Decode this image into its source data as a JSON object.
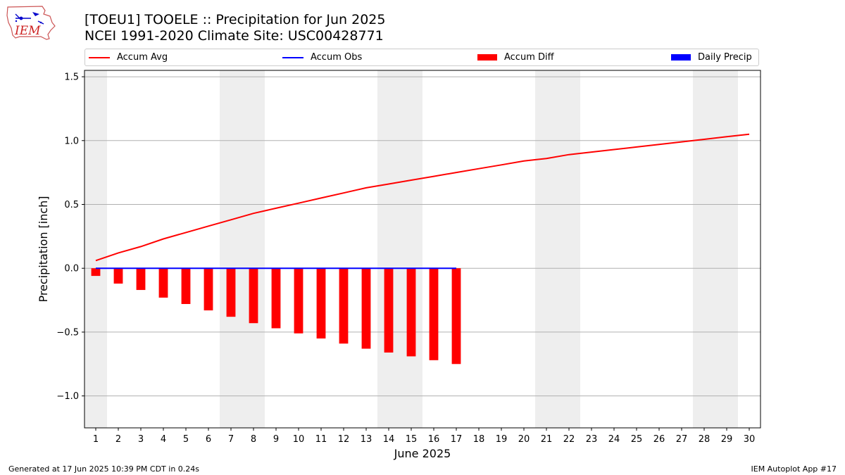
{
  "title_line1": "[TOEU1] TOOELE :: Precipitation for Jun 2025",
  "title_line2": "NCEI 1991-2020 Climate Site: USC00428771",
  "logo_text": "IEM",
  "legend": {
    "accum_avg": "Accum Avg",
    "accum_obs": "Accum Obs",
    "accum_diff": "Accum Diff",
    "daily_precip": "Daily Precip"
  },
  "colors": {
    "accum_avg": "#ff0000",
    "accum_obs": "#0000ff",
    "accum_diff": "#ff0000",
    "daily_precip": "#0000ff",
    "weekend_shade": "#eeeeee",
    "grid": "#b0b0b0"
  },
  "footer_left": "Generated at 17 Jun 2025 10:39 PM CDT in 0.24s",
  "footer_right": "IEM Autoplot App #17",
  "chart_data": {
    "type": "bar",
    "xlabel": "June 2025",
    "ylabel": "Precipitation [inch]",
    "xlim": [
      0.5,
      30.5
    ],
    "ylim": [
      -1.25,
      1.55
    ],
    "yticks": [
      -1.0,
      -0.5,
      0.0,
      0.5,
      1.0,
      1.5
    ],
    "ytick_labels": [
      "−1.0",
      "−0.5",
      "0.0",
      "0.5",
      "1.0",
      "1.5"
    ],
    "x": [
      1,
      2,
      3,
      4,
      5,
      6,
      7,
      8,
      9,
      10,
      11,
      12,
      13,
      14,
      15,
      16,
      17,
      18,
      19,
      20,
      21,
      22,
      23,
      24,
      25,
      26,
      27,
      28,
      29,
      30
    ],
    "grid": "horizontal",
    "legend_position": "top",
    "shaded_days": [
      1,
      7,
      8,
      14,
      15,
      21,
      22,
      28,
      29
    ],
    "series": [
      {
        "name": "Accum Avg",
        "type": "line",
        "x": [
          1,
          2,
          3,
          4,
          5,
          6,
          7,
          8,
          9,
          10,
          11,
          12,
          13,
          14,
          15,
          16,
          17,
          18,
          19,
          20,
          21,
          22,
          23,
          24,
          25,
          26,
          27,
          28,
          29,
          30
        ],
        "values": [
          0.06,
          0.12,
          0.17,
          0.23,
          0.28,
          0.33,
          0.38,
          0.43,
          0.47,
          0.51,
          0.55,
          0.59,
          0.63,
          0.66,
          0.69,
          0.72,
          0.75,
          0.78,
          0.81,
          0.84,
          0.86,
          0.89,
          0.91,
          0.93,
          0.95,
          0.97,
          0.99,
          1.01,
          1.03,
          1.05
        ]
      },
      {
        "name": "Accum Obs",
        "type": "line",
        "x": [
          1,
          2,
          3,
          4,
          5,
          6,
          7,
          8,
          9,
          10,
          11,
          12,
          13,
          14,
          15,
          16,
          17
        ],
        "values": [
          0,
          0,
          0,
          0,
          0,
          0,
          0,
          0,
          0,
          0,
          0,
          0,
          0,
          0,
          0,
          0,
          0
        ]
      },
      {
        "name": "Accum Diff",
        "type": "bar",
        "x": [
          1,
          2,
          3,
          4,
          5,
          6,
          7,
          8,
          9,
          10,
          11,
          12,
          13,
          14,
          15,
          16,
          17
        ],
        "values": [
          -0.06,
          -0.12,
          -0.17,
          -0.23,
          -0.28,
          -0.33,
          -0.38,
          -0.43,
          -0.47,
          -0.51,
          -0.55,
          -0.59,
          -0.63,
          -0.66,
          -0.69,
          -0.72,
          -0.75
        ]
      },
      {
        "name": "Daily Precip",
        "type": "bar",
        "x": [
          1,
          2,
          3,
          4,
          5,
          6,
          7,
          8,
          9,
          10,
          11,
          12,
          13,
          14,
          15,
          16,
          17
        ],
        "values": [
          0,
          0,
          0,
          0,
          0,
          0,
          0,
          0,
          0,
          0,
          0,
          0,
          0,
          0,
          0,
          0,
          0
        ]
      }
    ]
  }
}
